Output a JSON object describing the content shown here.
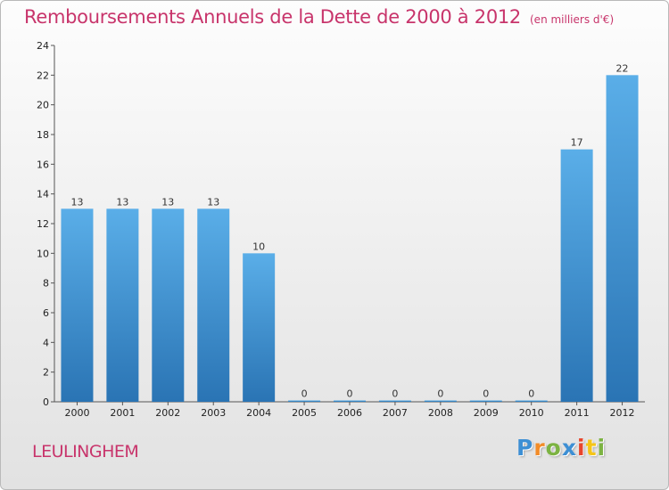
{
  "header": {
    "title": "Remboursements Annuels de la Dette de 2000 à 2012",
    "subtitle": "(en milliers d'€)"
  },
  "footer": {
    "commune": "LEULINGHEM",
    "logo_letters": [
      "P",
      "r",
      "o",
      "x",
      "i",
      "t",
      "i"
    ],
    "logo_colors": [
      "#3d8fd4",
      "#f28c28",
      "#7cb342",
      "#3d8fd4",
      "#e8452c",
      "#f5c518",
      "#7cb342"
    ]
  },
  "chart_data": {
    "type": "bar",
    "title": "Remboursements Annuels de la Dette de 2000 à 2012",
    "subtitle": "(en milliers d'€)",
    "categories": [
      "2000",
      "2001",
      "2002",
      "2003",
      "2004",
      "2005",
      "2006",
      "2007",
      "2008",
      "2009",
      "2010",
      "2011",
      "2012"
    ],
    "values": [
      13,
      13,
      13,
      13,
      10,
      0,
      0,
      0,
      0,
      0,
      0,
      17,
      22
    ],
    "value_labels": [
      "13",
      "13",
      "13",
      "13",
      "10",
      "0",
      "0",
      "0",
      "0",
      "0",
      "0",
      "17",
      "22"
    ],
    "xlabel": "",
    "ylabel": "",
    "ylim": [
      0,
      24
    ],
    "y_ticks": [
      0,
      2,
      4,
      6,
      8,
      10,
      12,
      14,
      16,
      18,
      20,
      22,
      24
    ],
    "y_tick_labels": [
      "0",
      "2",
      "4",
      "6",
      "8",
      "10",
      "12",
      "14",
      "16",
      "18",
      "20",
      "22",
      "24"
    ],
    "grid": false,
    "legend": "none",
    "bar_color_top": "#5aaee8",
    "bar_color_bottom": "#2a74b4"
  }
}
